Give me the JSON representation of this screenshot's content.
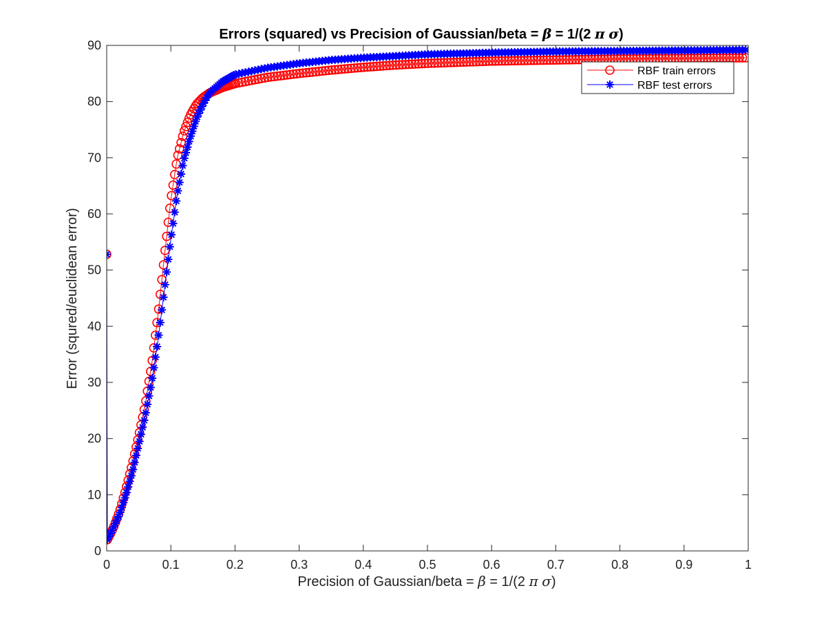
{
  "chart_data": {
    "type": "line",
    "title": {
      "prefix": "Errors (squared) vs Precision of Gaussian/beta = ",
      "beta_symbol": "β",
      "middle": " = 1/(2 ",
      "pi_symbol": "π",
      "space": " ",
      "sigma_symbol": "σ",
      "suffix": ")"
    },
    "xlabel": {
      "prefix": "Precision of Gaussian/beta = ",
      "beta_symbol": "β",
      "middle": " = 1/(2 ",
      "pi_symbol": "π",
      "space": " ",
      "sigma_symbol": "σ",
      "suffix": ")"
    },
    "ylabel": "Error (squred/euclidean error)",
    "xlim": [
      0,
      1
    ],
    "ylim": [
      0,
      90
    ],
    "x_ticks": [
      "0",
      "0.1",
      "0.2",
      "0.3",
      "0.4",
      "0.5",
      "0.6",
      "0.7",
      "0.8",
      "0.9",
      "1"
    ],
    "y_ticks": [
      "0",
      "10",
      "20",
      "30",
      "40",
      "50",
      "60",
      "70",
      "80",
      "90"
    ],
    "grid": false,
    "legend_position": "top-right",
    "series": [
      {
        "name": "RBF train errors",
        "color": "#ff0000",
        "marker": "circle",
        "points": [
          [
            0,
            52.8
          ],
          [
            0.001,
            2.0
          ],
          [
            0.01,
            4.0
          ],
          [
            0.02,
            7.0
          ],
          [
            0.03,
            11.0
          ],
          [
            0.04,
            15.5
          ],
          [
            0.05,
            20.5
          ],
          [
            0.06,
            26.0
          ],
          [
            0.07,
            33.0
          ],
          [
            0.08,
            42.0
          ],
          [
            0.09,
            52.5
          ],
          [
            0.1,
            62.5
          ],
          [
            0.11,
            70.0
          ],
          [
            0.12,
            74.5
          ],
          [
            0.13,
            77.5
          ],
          [
            0.14,
            79.5
          ],
          [
            0.15,
            80.7
          ],
          [
            0.16,
            81.5
          ],
          [
            0.18,
            82.5
          ],
          [
            0.2,
            83.2
          ],
          [
            0.25,
            84.3
          ],
          [
            0.3,
            85.0
          ],
          [
            0.35,
            85.6
          ],
          [
            0.4,
            86.1
          ],
          [
            0.45,
            86.5
          ],
          [
            0.5,
            86.8
          ],
          [
            0.6,
            87.2
          ],
          [
            0.7,
            87.4
          ],
          [
            0.8,
            87.6
          ],
          [
            0.9,
            87.7
          ],
          [
            1.0,
            87.8
          ]
        ]
      },
      {
        "name": "RBF test errors",
        "color": "#0000ff",
        "marker": "asterisk",
        "points": [
          [
            0,
            52.8
          ],
          [
            0.001,
            2.0
          ],
          [
            0.01,
            4.0
          ],
          [
            0.02,
            6.5
          ],
          [
            0.03,
            10.0
          ],
          [
            0.04,
            14.0
          ],
          [
            0.05,
            19.0
          ],
          [
            0.06,
            24.0
          ],
          [
            0.07,
            30.0
          ],
          [
            0.08,
            37.5
          ],
          [
            0.09,
            46.5
          ],
          [
            0.1,
            55.5
          ],
          [
            0.11,
            63.5
          ],
          [
            0.12,
            69.5
          ],
          [
            0.13,
            73.5
          ],
          [
            0.14,
            77.0
          ],
          [
            0.15,
            79.5
          ],
          [
            0.16,
            81.5
          ],
          [
            0.18,
            83.5
          ],
          [
            0.2,
            84.8
          ],
          [
            0.25,
            86.0
          ],
          [
            0.3,
            86.8
          ],
          [
            0.35,
            87.4
          ],
          [
            0.4,
            87.8
          ],
          [
            0.45,
            88.1
          ],
          [
            0.5,
            88.4
          ],
          [
            0.6,
            88.7
          ],
          [
            0.7,
            88.9
          ],
          [
            0.8,
            89.0
          ],
          [
            0.9,
            89.1
          ],
          [
            1.0,
            89.2
          ]
        ]
      }
    ]
  }
}
